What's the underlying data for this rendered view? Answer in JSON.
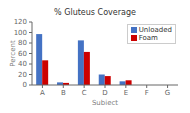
{
  "chart_data": {
    "type": "bar",
    "title": "% Gluteus Coverage",
    "xlabel": "Subject",
    "ylabel": "Percent",
    "categories": [
      "A",
      "B",
      "C",
      "D",
      "E",
      "F",
      "G"
    ],
    "series": [
      {
        "name": "Unloaded",
        "color": "#4472C4",
        "values": [
          97,
          5,
          85,
          20,
          7,
          0,
          0
        ]
      },
      {
        "name": "Foam",
        "color": "#CC0000",
        "values": [
          47,
          4,
          63,
          17,
          9,
          0,
          0
        ]
      }
    ],
    "ylim": [
      0,
      120
    ],
    "yticks": [
      0,
      20,
      40,
      60,
      80,
      100,
      120
    ],
    "grid": false,
    "legend": "upper right"
  }
}
